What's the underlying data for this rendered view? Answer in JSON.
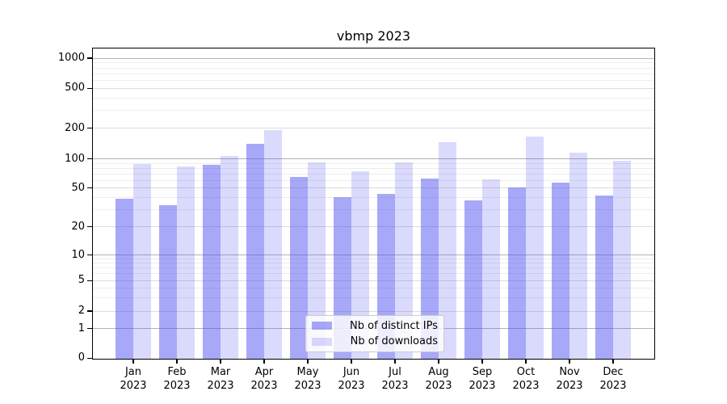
{
  "title": "vbmp 2023",
  "chart_data": {
    "type": "bar",
    "title": "vbmp 2023",
    "categories": [
      "Jan",
      "Feb",
      "Mar",
      "Apr",
      "May",
      "Jun",
      "Jul",
      "Aug",
      "Sep",
      "Oct",
      "Nov",
      "Dec"
    ],
    "year": "2023",
    "series": [
      {
        "name": "Nb of distinct IPs",
        "color": "rgba(70,70,240,0.47)",
        "flat_color": "#a8a8f8",
        "values": [
          39,
          33,
          86,
          139,
          65,
          40,
          43,
          62,
          37,
          51,
          57,
          42
        ]
      },
      {
        "name": "Nb of downloads",
        "color": "rgba(70,70,240,0.20)",
        "flat_color": "#dadafb",
        "values": [
          88,
          83,
          107,
          190,
          91,
          74,
          92,
          146,
          61,
          164,
          115,
          96
        ]
      }
    ],
    "y_axis": {
      "scale": "log-custom",
      "range": [
        0,
        1000
      ],
      "ticks": [
        1000,
        500,
        200,
        100,
        50,
        20,
        10,
        5,
        2,
        1,
        0
      ],
      "major_gridlines": [
        1,
        10,
        100,
        1000
      ],
      "mid_gridlines": [
        2,
        5,
        20,
        50,
        200,
        500
      ],
      "minor_gridlines": [
        3,
        4,
        6,
        7,
        8,
        9,
        30,
        40,
        60,
        70,
        80,
        90,
        300,
        400,
        600,
        700,
        800,
        900
      ]
    },
    "legend": {
      "position": "bottom-center",
      "entries": [
        "Nb of distinct IPs",
        "Nb of downloads"
      ]
    },
    "grid": true
  }
}
